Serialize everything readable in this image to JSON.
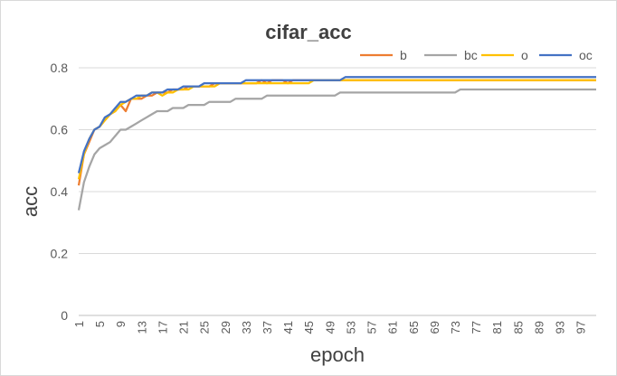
{
  "chart_data": {
    "type": "line",
    "title": "cifar_acc",
    "xlabel": "epoch",
    "ylabel": "acc",
    "ylim": [
      0,
      0.8
    ],
    "y_ticks": [
      "0",
      "0.2",
      "0.4",
      "0.6",
      "0.8"
    ],
    "x_ticks": [
      "1",
      "5",
      "9",
      "13",
      "17",
      "21",
      "25",
      "29",
      "33",
      "37",
      "41",
      "45",
      "49",
      "53",
      "57",
      "61",
      "65",
      "69",
      "73",
      "77",
      "81",
      "85",
      "89",
      "93",
      "97"
    ],
    "x_range": [
      1,
      100
    ],
    "grid": true,
    "legend_position": "top-right",
    "series": [
      {
        "name": "b",
        "color": "#ED7D31",
        "values": [
          0.42,
          0.52,
          0.56,
          0.6,
          0.61,
          0.63,
          0.65,
          0.66,
          0.68,
          0.66,
          0.7,
          0.7,
          0.7,
          0.71,
          0.71,
          0.72,
          0.72,
          0.72,
          0.73,
          0.73,
          0.73,
          0.74,
          0.74,
          0.74,
          0.74,
          0.74,
          0.75,
          0.75,
          0.75,
          0.75,
          0.75,
          0.75,
          0.75,
          0.75,
          0.75,
          0.76,
          0.75,
          0.76,
          0.76,
          0.76,
          0.75,
          0.76,
          0.76,
          0.76,
          0.76,
          0.76,
          0.76,
          0.76,
          0.76,
          0.76,
          0.76,
          0.76,
          0.76,
          0.76,
          0.76,
          0.76,
          0.76,
          0.76,
          0.76,
          0.76,
          0.76,
          0.76,
          0.76,
          0.76,
          0.76,
          0.76,
          0.76,
          0.76,
          0.76,
          0.76,
          0.76,
          0.76,
          0.76,
          0.76,
          0.76,
          0.76,
          0.76,
          0.76,
          0.76,
          0.76,
          0.76,
          0.76,
          0.76,
          0.76,
          0.76,
          0.76,
          0.76,
          0.76,
          0.76,
          0.76,
          0.76,
          0.76,
          0.76,
          0.76,
          0.76,
          0.76,
          0.76,
          0.76,
          0.76,
          0.76
        ]
      },
      {
        "name": "bc",
        "color": "#A5A5A5",
        "values": [
          0.34,
          0.43,
          0.48,
          0.52,
          0.54,
          0.55,
          0.56,
          0.58,
          0.6,
          0.6,
          0.61,
          0.62,
          0.63,
          0.64,
          0.65,
          0.66,
          0.66,
          0.66,
          0.67,
          0.67,
          0.67,
          0.68,
          0.68,
          0.68,
          0.68,
          0.69,
          0.69,
          0.69,
          0.69,
          0.69,
          0.7,
          0.7,
          0.7,
          0.7,
          0.7,
          0.7,
          0.71,
          0.71,
          0.71,
          0.71,
          0.71,
          0.71,
          0.71,
          0.71,
          0.71,
          0.71,
          0.71,
          0.71,
          0.71,
          0.71,
          0.72,
          0.72,
          0.72,
          0.72,
          0.72,
          0.72,
          0.72,
          0.72,
          0.72,
          0.72,
          0.72,
          0.72,
          0.72,
          0.72,
          0.72,
          0.72,
          0.72,
          0.72,
          0.72,
          0.72,
          0.72,
          0.72,
          0.72,
          0.73,
          0.73,
          0.73,
          0.73,
          0.73,
          0.73,
          0.73,
          0.73,
          0.73,
          0.73,
          0.73,
          0.73,
          0.73,
          0.73,
          0.73,
          0.73,
          0.73,
          0.73,
          0.73,
          0.73,
          0.73,
          0.73,
          0.73,
          0.73,
          0.73,
          0.73,
          0.73
        ]
      },
      {
        "name": "o",
        "color": "#FFC000",
        "values": [
          0.44,
          0.52,
          0.57,
          0.6,
          0.61,
          0.63,
          0.65,
          0.66,
          0.68,
          0.69,
          0.7,
          0.7,
          0.71,
          0.71,
          0.72,
          0.72,
          0.71,
          0.72,
          0.72,
          0.73,
          0.73,
          0.73,
          0.74,
          0.74,
          0.74,
          0.74,
          0.74,
          0.75,
          0.75,
          0.75,
          0.75,
          0.75,
          0.75,
          0.75,
          0.75,
          0.75,
          0.75,
          0.75,
          0.75,
          0.75,
          0.75,
          0.75,
          0.75,
          0.75,
          0.75,
          0.76,
          0.76,
          0.76,
          0.76,
          0.76,
          0.76,
          0.76,
          0.76,
          0.76,
          0.76,
          0.76,
          0.76,
          0.76,
          0.76,
          0.76,
          0.76,
          0.76,
          0.76,
          0.76,
          0.76,
          0.76,
          0.76,
          0.76,
          0.76,
          0.76,
          0.76,
          0.76,
          0.76,
          0.76,
          0.76,
          0.76,
          0.76,
          0.76,
          0.76,
          0.76,
          0.76,
          0.76,
          0.76,
          0.76,
          0.76,
          0.76,
          0.76,
          0.76,
          0.76,
          0.76,
          0.76,
          0.76,
          0.76,
          0.76,
          0.76,
          0.76,
          0.76,
          0.76,
          0.76,
          0.76
        ]
      },
      {
        "name": "oc",
        "color": "#4472C4",
        "values": [
          0.46,
          0.53,
          0.57,
          0.6,
          0.61,
          0.64,
          0.65,
          0.67,
          0.69,
          0.69,
          0.7,
          0.71,
          0.71,
          0.71,
          0.72,
          0.72,
          0.72,
          0.73,
          0.73,
          0.73,
          0.74,
          0.74,
          0.74,
          0.74,
          0.75,
          0.75,
          0.75,
          0.75,
          0.75,
          0.75,
          0.75,
          0.75,
          0.76,
          0.76,
          0.76,
          0.76,
          0.76,
          0.76,
          0.76,
          0.76,
          0.76,
          0.76,
          0.76,
          0.76,
          0.76,
          0.76,
          0.76,
          0.76,
          0.76,
          0.76,
          0.76,
          0.77,
          0.77,
          0.77,
          0.77,
          0.77,
          0.77,
          0.77,
          0.77,
          0.77,
          0.77,
          0.77,
          0.77,
          0.77,
          0.77,
          0.77,
          0.77,
          0.77,
          0.77,
          0.77,
          0.77,
          0.77,
          0.77,
          0.77,
          0.77,
          0.77,
          0.77,
          0.77,
          0.77,
          0.77,
          0.77,
          0.77,
          0.77,
          0.77,
          0.77,
          0.77,
          0.77,
          0.77,
          0.77,
          0.77,
          0.77,
          0.77,
          0.77,
          0.77,
          0.77,
          0.77,
          0.77,
          0.77,
          0.77,
          0.77
        ]
      }
    ]
  }
}
